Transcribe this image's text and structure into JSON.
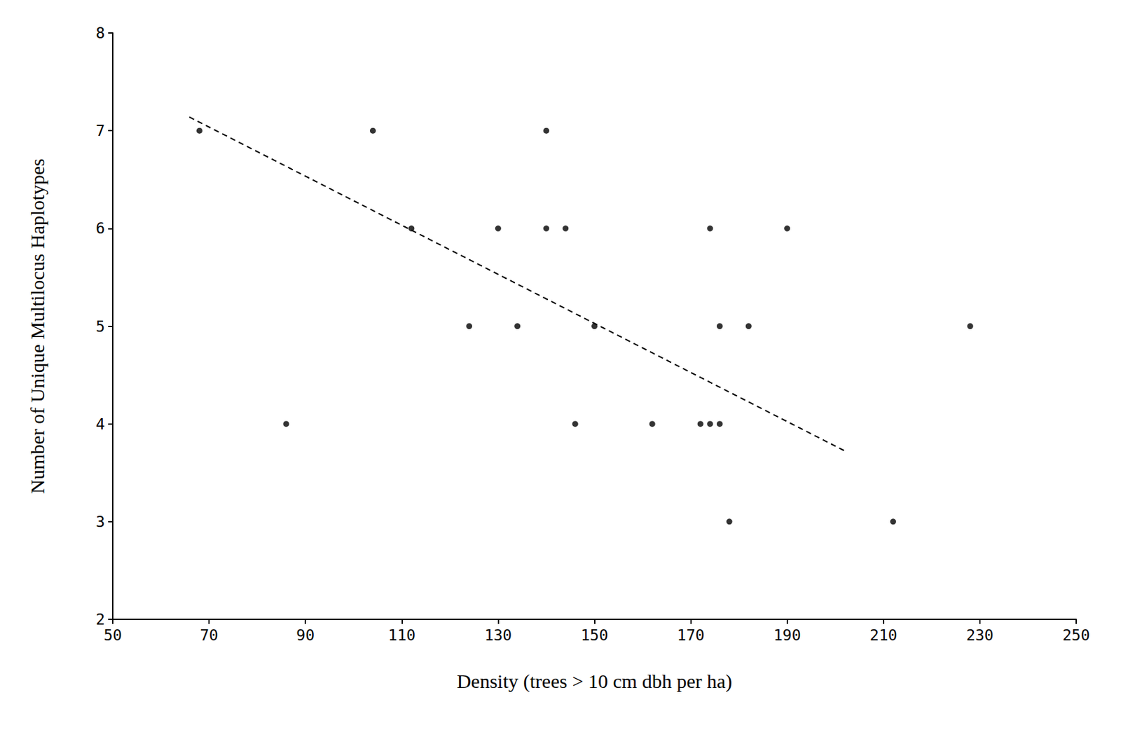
{
  "chart_data": {
    "type": "scatter",
    "x_label": "Density (trees > 10 cm dbh per ha)",
    "y_label": "Number of Unique Multilocus Haplotypes",
    "xlim": [
      50,
      250
    ],
    "xticks": [
      50,
      70,
      90,
      110,
      130,
      150,
      170,
      190,
      210,
      230,
      250
    ],
    "ylim": [
      2,
      8
    ],
    "yticks": [
      2,
      3,
      4,
      5,
      6,
      7,
      8
    ],
    "grid": false,
    "series": [
      {
        "type": "scatter",
        "color": "#000000",
        "marker": "circle",
        "x": [
          68,
          86,
          104,
          112,
          124,
          130,
          134,
          140,
          140,
          144,
          146,
          150,
          162,
          172,
          174,
          174,
          176,
          176,
          178,
          182,
          190,
          212,
          228
        ],
        "values": [
          7,
          4,
          7,
          6,
          5,
          6,
          5,
          7,
          6,
          6,
          4,
          5,
          4,
          4,
          4,
          6,
          4,
          5,
          3,
          5,
          6,
          3,
          5
        ]
      },
      {
        "type": "line",
        "color": "#000000",
        "line_style": "dashed",
        "x": [
          65.9,
          202.5
        ],
        "values": [
          7.14,
          3.71
        ]
      }
    ]
  }
}
